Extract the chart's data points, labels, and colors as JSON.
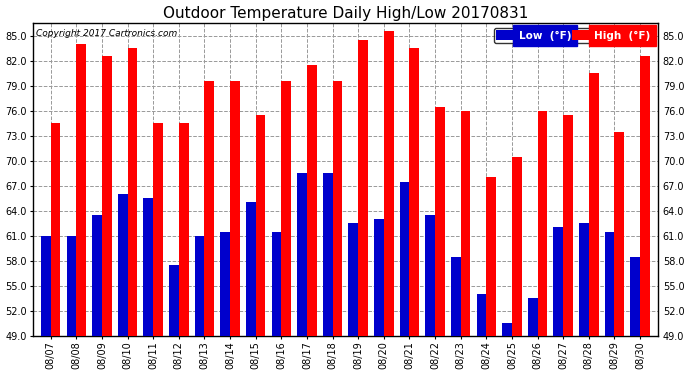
{
  "title": "Outdoor Temperature Daily High/Low 20170831",
  "copyright": "Copyright 2017 Cartronics.com",
  "dates": [
    "08/07",
    "08/08",
    "08/09",
    "08/10",
    "08/11",
    "08/12",
    "08/13",
    "08/14",
    "08/15",
    "08/16",
    "08/17",
    "08/18",
    "08/19",
    "08/20",
    "08/21",
    "08/22",
    "08/23",
    "08/24",
    "08/25",
    "08/26",
    "08/27",
    "08/28",
    "08/29",
    "08/30"
  ],
  "highs": [
    74.5,
    84.0,
    82.5,
    83.5,
    74.5,
    74.5,
    79.5,
    79.5,
    75.5,
    79.5,
    81.5,
    79.5,
    84.5,
    85.5,
    83.5,
    76.5,
    76.0,
    68.0,
    70.5,
    76.0,
    75.5,
    80.5,
    73.5,
    82.5
  ],
  "lows": [
    61.0,
    61.0,
    63.5,
    66.0,
    65.5,
    57.5,
    61.0,
    61.5,
    65.0,
    61.5,
    68.5,
    68.5,
    62.5,
    63.0,
    67.5,
    63.5,
    58.5,
    54.0,
    50.5,
    53.5,
    62.0,
    62.5,
    61.5,
    58.5
  ],
  "high_color": "#ff0000",
  "low_color": "#0000cc",
  "bg_color": "#ffffff",
  "plot_bg_color": "#ffffff",
  "grid_color": "#999999",
  "ylim_min": 49.0,
  "ylim_max": 86.5,
  "yticks": [
    49.0,
    52.0,
    55.0,
    58.0,
    61.0,
    64.0,
    67.0,
    70.0,
    73.0,
    76.0,
    79.0,
    82.0,
    85.0
  ],
  "bar_width": 0.38,
  "title_fontsize": 11,
  "tick_fontsize": 7,
  "legend_label_low": "Low  (°F)",
  "legend_label_high": "High  (°F)"
}
